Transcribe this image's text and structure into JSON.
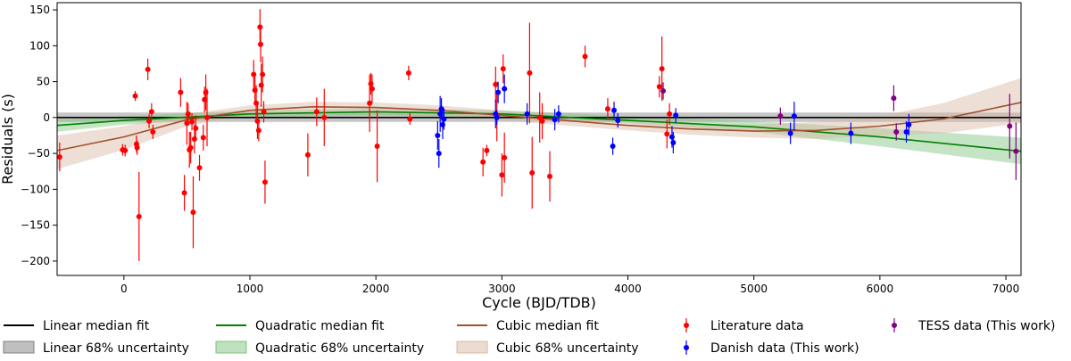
{
  "chart_data": {
    "type": "scatter",
    "title": "",
    "xlabel": "Cycle (BJD/TDB)",
    "ylabel": "Residuals (s)",
    "xlim": [
      -530,
      7120
    ],
    "ylim": [
      -220,
      160
    ],
    "xticks": [
      0,
      1000,
      2000,
      3000,
      4000,
      5000,
      6000,
      7000
    ],
    "yticks": [
      -200,
      -150,
      -100,
      -50,
      0,
      50,
      100,
      150
    ],
    "grid": false,
    "legend": {
      "placement": "below-plot",
      "entries": [
        {
          "label": "Linear median fit",
          "kind": "line",
          "color": "#000000"
        },
        {
          "label": "Linear 68% uncertainty",
          "kind": "band",
          "color": "#808080"
        },
        {
          "label": "Quadratic median fit",
          "kind": "line",
          "color": "#008000"
        },
        {
          "label": "Quadratic 68% uncertainty",
          "kind": "band",
          "color": "#7fc47f"
        },
        {
          "label": "Cubic median fit",
          "kind": "line",
          "color": "#a0522d"
        },
        {
          "label": "Cubic 68% uncertainty",
          "kind": "band",
          "color": "#d9b8a3"
        },
        {
          "label": "Literature data",
          "kind": "errorbar",
          "color": "#ff0000"
        },
        {
          "label": "Danish data (This work)",
          "kind": "errorbar",
          "color": "#0000ff"
        },
        {
          "label": "TESS data (This work)",
          "kind": "errorbar",
          "color": "#800080"
        }
      ]
    },
    "fits": [
      {
        "name": "Linear median fit",
        "color": "#000000",
        "band_color": "#808080",
        "x": [
          -530,
          7120
        ],
        "y": [
          0,
          0
        ],
        "lo": [
          -6,
          -6
        ],
        "hi": [
          7,
          7
        ]
      },
      {
        "name": "Quadratic median fit",
        "color": "#008000",
        "band_color": "#7fc47f",
        "x": [
          -530,
          0,
          1000,
          2000,
          3000,
          4000,
          5000,
          6000,
          7120
        ],
        "y": [
          -11,
          -4,
          5,
          8,
          5,
          -4,
          -13,
          -27,
          -47
        ],
        "lo": [
          -20,
          -10,
          0,
          3,
          0,
          -8,
          -20,
          -40,
          -65
        ],
        "hi": [
          -3,
          2,
          10,
          13,
          10,
          2,
          -5,
          -15,
          -28
        ]
      },
      {
        "name": "Cubic median fit",
        "color": "#a0522d",
        "band_color": "#d9b8a3",
        "x": [
          -530,
          0,
          500,
          1000,
          1500,
          2000,
          2500,
          3000,
          3500,
          4000,
          4500,
          5000,
          5500,
          6000,
          6500,
          7120
        ],
        "y": [
          -46,
          -27,
          -3,
          10,
          15,
          14,
          10,
          3,
          -4,
          -11,
          -16,
          -19,
          -18,
          -12,
          -2,
          21
        ],
        "lo": [
          -72,
          -45,
          -12,
          3,
          8,
          6,
          3,
          -4,
          -11,
          -18,
          -24,
          -28,
          -30,
          -25,
          -22,
          -8
        ],
        "hi": [
          -25,
          -12,
          5,
          17,
          22,
          21,
          17,
          10,
          3,
          -4,
          -9,
          -10,
          -6,
          2,
          20,
          55
        ]
      }
    ],
    "series": [
      {
        "name": "Literature data",
        "color": "#ff0000",
        "points": [
          [
            -510,
            -55,
            20
          ],
          [
            -10,
            -45,
            8
          ],
          [
            10,
            -46,
            8
          ],
          [
            90,
            30,
            7
          ],
          [
            100,
            -37,
            12
          ],
          [
            105,
            -42,
            10
          ],
          [
            120,
            -138,
            62
          ],
          [
            190,
            67,
            15
          ],
          [
            200,
            -5,
            10
          ],
          [
            220,
            8,
            12
          ],
          [
            230,
            -20,
            10
          ],
          [
            450,
            35,
            20
          ],
          [
            480,
            -105,
            25
          ],
          [
            500,
            -8,
            30
          ],
          [
            510,
            5,
            15
          ],
          [
            520,
            -45,
            25
          ],
          [
            530,
            -42,
            22
          ],
          [
            540,
            -6,
            12
          ],
          [
            550,
            -132,
            50
          ],
          [
            560,
            -30,
            20
          ],
          [
            570,
            -15,
            18
          ],
          [
            600,
            -70,
            18
          ],
          [
            630,
            -28,
            18
          ],
          [
            640,
            25,
            18
          ],
          [
            650,
            35,
            25
          ],
          [
            660,
            0,
            40
          ],
          [
            1030,
            60,
            20
          ],
          [
            1040,
            38,
            20
          ],
          [
            1050,
            20,
            25
          ],
          [
            1060,
            -5,
            25
          ],
          [
            1070,
            -18,
            15
          ],
          [
            1080,
            126,
            25
          ],
          [
            1085,
            102,
            25
          ],
          [
            1090,
            45,
            30
          ],
          [
            1100,
            60,
            25
          ],
          [
            1110,
            8,
            15
          ],
          [
            1120,
            -90,
            30
          ],
          [
            1460,
            -52,
            30
          ],
          [
            1530,
            8,
            20
          ],
          [
            1590,
            0,
            40
          ],
          [
            1950,
            20,
            40
          ],
          [
            1960,
            47,
            15
          ],
          [
            1970,
            40,
            20
          ],
          [
            2010,
            -40,
            50
          ],
          [
            2260,
            62,
            10
          ],
          [
            2270,
            -2,
            8
          ],
          [
            2850,
            -62,
            20
          ],
          [
            2880,
            -46,
            8
          ],
          [
            2950,
            46,
            25
          ],
          [
            2960,
            2,
            35
          ],
          [
            3000,
            -80,
            30
          ],
          [
            3010,
            68,
            20
          ],
          [
            3020,
            -56,
            35
          ],
          [
            3220,
            62,
            70
          ],
          [
            3240,
            -77,
            50
          ],
          [
            3300,
            0,
            35
          ],
          [
            3320,
            -5,
            25
          ],
          [
            3380,
            -82,
            35
          ],
          [
            3660,
            85,
            15
          ],
          [
            3840,
            12,
            15
          ],
          [
            4250,
            43,
            15
          ],
          [
            4270,
            68,
            45
          ],
          [
            4310,
            -23,
            20
          ],
          [
            4330,
            5,
            15
          ]
        ]
      },
      {
        "name": "Danish data (This work)",
        "color": "#0000ff",
        "points": [
          [
            2490,
            -25,
            20
          ],
          [
            2500,
            -50,
            20
          ],
          [
            2510,
            5,
            25
          ],
          [
            2520,
            12,
            15
          ],
          [
            2530,
            -10,
            20
          ],
          [
            2540,
            -2,
            15
          ],
          [
            2950,
            5,
            20
          ],
          [
            2960,
            0,
            10
          ],
          [
            2970,
            35,
            15
          ],
          [
            3020,
            40,
            20
          ],
          [
            3200,
            5,
            15
          ],
          [
            3420,
            -3,
            15
          ],
          [
            3450,
            5,
            12
          ],
          [
            3880,
            -40,
            12
          ],
          [
            3890,
            10,
            12
          ],
          [
            3920,
            -4,
            10
          ],
          [
            4350,
            -27,
            15
          ],
          [
            4360,
            -35,
            15
          ],
          [
            4380,
            3,
            10
          ],
          [
            5290,
            -22,
            15
          ],
          [
            5320,
            2,
            20
          ],
          [
            5770,
            -22,
            15
          ],
          [
            6210,
            -20,
            15
          ],
          [
            6230,
            -10,
            15
          ]
        ]
      },
      {
        "name": "TESS data (This work)",
        "color": "#800080",
        "points": [
          [
            4280,
            37,
            12
          ],
          [
            5210,
            2,
            12
          ],
          [
            6110,
            27,
            18
          ],
          [
            6130,
            -20,
            12
          ],
          [
            7030,
            -12,
            45
          ],
          [
            7080,
            -47,
            40
          ]
        ]
      }
    ]
  }
}
